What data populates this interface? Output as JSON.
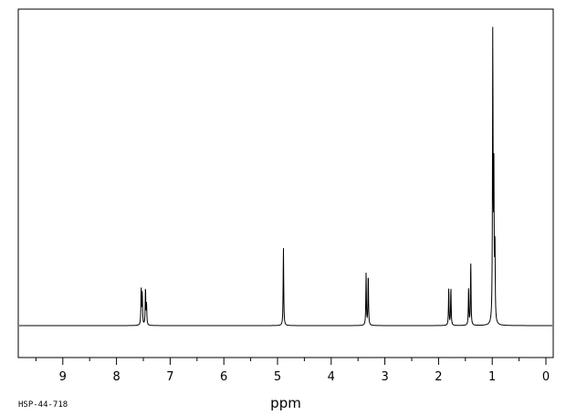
{
  "chart_data": {
    "type": "line",
    "title": "",
    "xlabel": "ppm",
    "ylabel": "",
    "corner_label": "HSP-44-718",
    "x_reversed": true,
    "xlim": [
      10.0,
      0.0
    ],
    "ylim": [
      -0.1,
      1.0
    ],
    "grid": false,
    "legend": "none",
    "line_color": "#000000",
    "x_ticks": [
      9,
      8,
      7,
      6,
      5,
      4,
      3,
      2,
      1,
      0
    ],
    "x_tick_labels": [
      "9",
      "8",
      "7",
      "6",
      "5",
      "4",
      "3",
      "2",
      "1",
      "0"
    ],
    "baseline": 0.0,
    "peaks": [
      {
        "ppm": 7.54,
        "height": 0.13
      },
      {
        "ppm": 7.52,
        "height": 0.11
      },
      {
        "ppm": 7.46,
        "height": 0.13
      },
      {
        "ppm": 7.44,
        "height": 0.07
      },
      {
        "ppm": 4.89,
        "height": 0.27
      },
      {
        "ppm": 3.35,
        "height": 0.18
      },
      {
        "ppm": 3.31,
        "height": 0.18
      },
      {
        "ppm": 1.81,
        "height": 0.13
      },
      {
        "ppm": 1.77,
        "height": 0.13
      },
      {
        "ppm": 1.44,
        "height": 0.13
      },
      {
        "ppm": 1.4,
        "height": 0.22
      },
      {
        "ppm": 0.99,
        "height": 1.0
      },
      {
        "ppm": 0.97,
        "height": 0.5
      },
      {
        "ppm": 0.95,
        "height": 0.27
      }
    ]
  }
}
